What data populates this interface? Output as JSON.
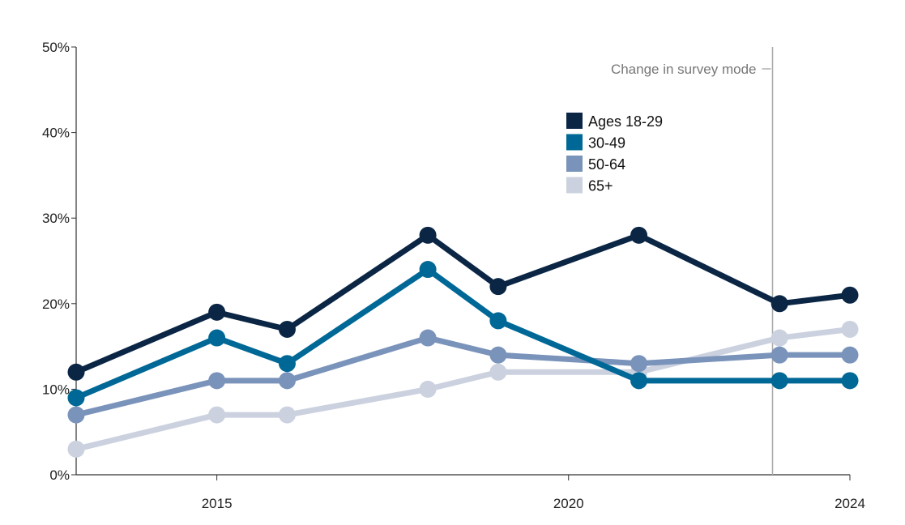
{
  "chart_data": {
    "type": "line",
    "title": "",
    "xlabel": "",
    "ylabel": "",
    "x": [
      2013,
      2015,
      2016,
      2018,
      2019,
      2021,
      2023,
      2024
    ],
    "xlim": [
      2013,
      2024
    ],
    "ylim": [
      0,
      50
    ],
    "y_ticks": [
      {
        "value": 0,
        "label": "0%"
      },
      {
        "value": 10,
        "label": "10%"
      },
      {
        "value": 20,
        "label": "20%"
      },
      {
        "value": 30,
        "label": "30%"
      },
      {
        "value": 40,
        "label": "40%"
      },
      {
        "value": 50,
        "label": "50%"
      }
    ],
    "x_ticks": [
      {
        "value": 2015,
        "label": "2015"
      },
      {
        "value": 2020,
        "label": "2020"
      },
      {
        "value": 2024,
        "label": "2024"
      }
    ],
    "grid": false,
    "legend_position": "top-right",
    "annotation": {
      "text": "Change in survey mode",
      "x": 2022.9
    },
    "series": [
      {
        "name": "Ages 18-29",
        "color": "#0b2645",
        "values": [
          12,
          19,
          17,
          28,
          22,
          28,
          20,
          21
        ]
      },
      {
        "name": "30-49",
        "color": "#006896",
        "values": [
          9,
          16,
          13,
          24,
          18,
          11,
          11,
          11
        ]
      },
      {
        "name": "50-64",
        "color": "#7a93ba",
        "values": [
          7,
          11,
          11,
          16,
          14,
          13,
          14,
          14
        ]
      },
      {
        "name": "65+",
        "color": "#cbd1df",
        "values": [
          3,
          7,
          7,
          10,
          12,
          12,
          16,
          17
        ]
      }
    ]
  }
}
